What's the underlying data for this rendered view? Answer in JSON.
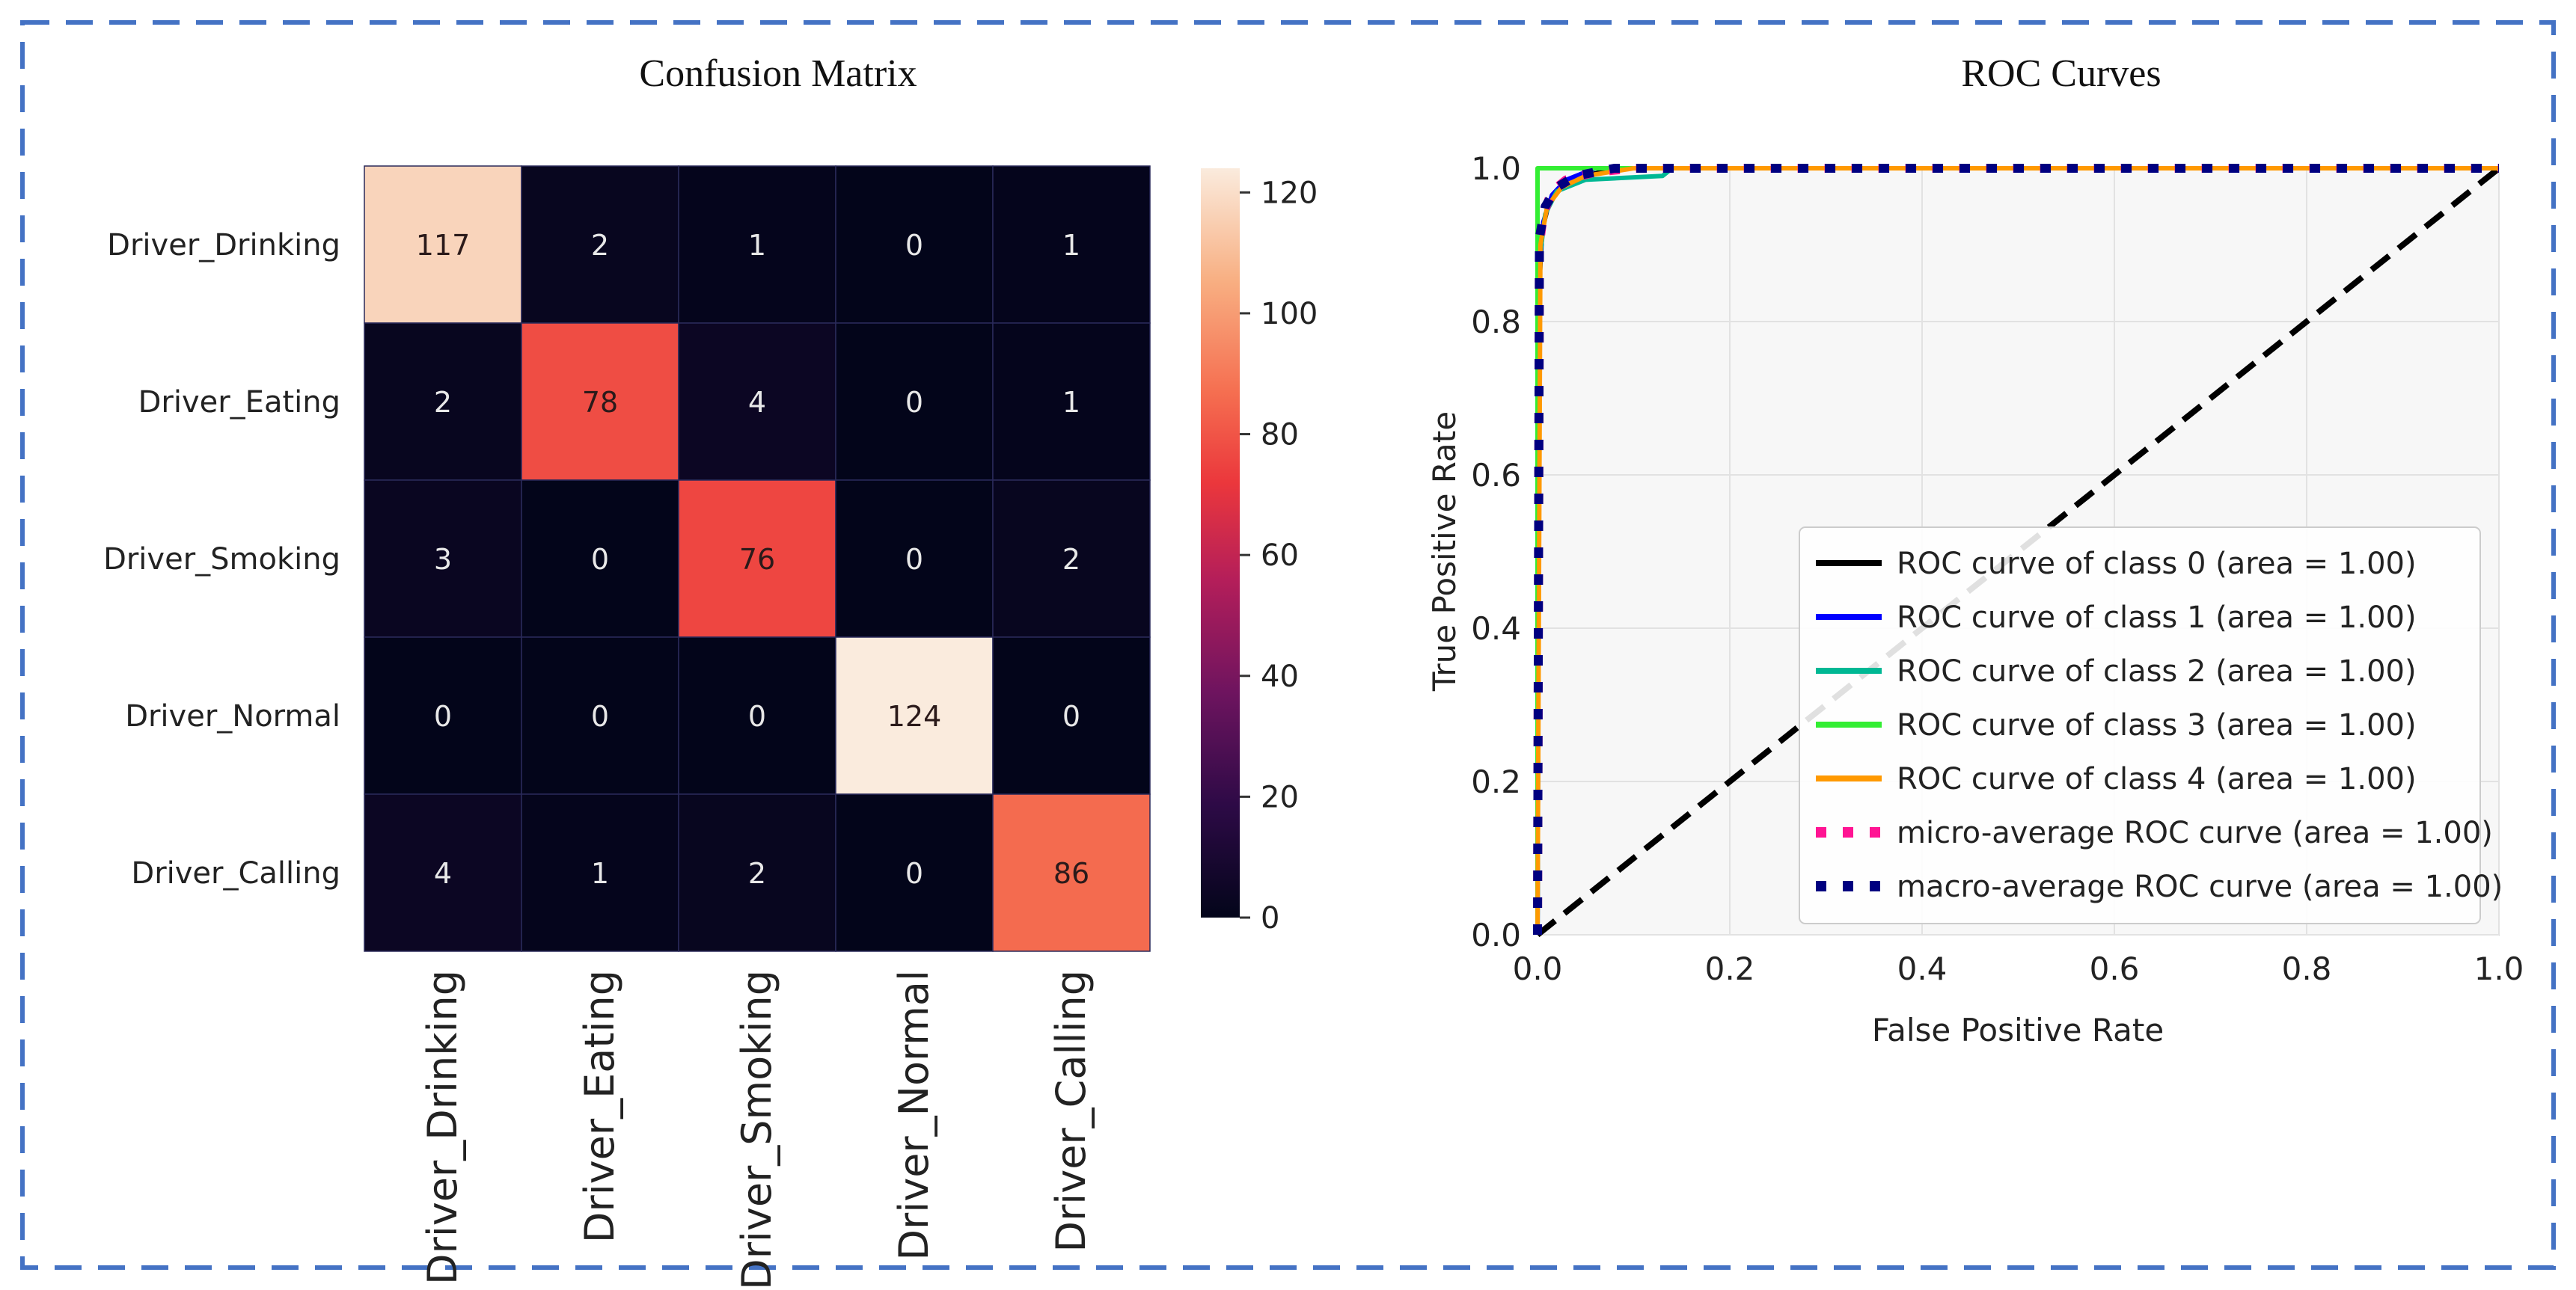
{
  "chart_data": [
    {
      "type": "heatmap",
      "title": "Confusion Matrix",
      "row_labels": [
        "Driver_Drinking",
        "Driver_Eating",
        "Driver_Smoking",
        "Driver_Normal",
        "Driver_Calling"
      ],
      "col_labels": [
        "Driver_Drinking",
        "Driver_Eating",
        "Driver_Smoking",
        "Driver_Normal",
        "Driver_Calling"
      ],
      "matrix": [
        [
          117,
          2,
          1,
          0,
          1
        ],
        [
          2,
          78,
          4,
          0,
          1
        ],
        [
          3,
          0,
          76,
          0,
          2
        ],
        [
          0,
          0,
          0,
          124,
          0
        ],
        [
          4,
          1,
          2,
          0,
          86
        ]
      ],
      "colorbar": {
        "min": 0,
        "max": 124,
        "ticks": [
          "0",
          "20",
          "40",
          "60",
          "80",
          "100",
          "120"
        ]
      }
    },
    {
      "type": "line",
      "title": "ROC Curves",
      "xlabel": "False Positive Rate",
      "ylabel": "True Positive Rate",
      "xlim": [
        0,
        1
      ],
      "ylim": [
        0,
        1
      ],
      "xticks": [
        "0.0",
        "0.2",
        "0.4",
        "0.6",
        "0.8",
        "1.0"
      ],
      "yticks": [
        "0.0",
        "0.2",
        "0.4",
        "0.6",
        "0.8",
        "1.0"
      ],
      "legend_position": "lower-right",
      "series": [
        {
          "name": "ROC curve of class 0 (area = 1.00)",
          "color": "#000000",
          "style": "solid",
          "points": [
            [
              0,
              0
            ],
            [
              0.002,
              0.85
            ],
            [
              0.005,
              0.92
            ],
            [
              0.012,
              0.955
            ],
            [
              0.025,
              0.975
            ],
            [
              0.05,
              0.99
            ],
            [
              0.08,
              1
            ],
            [
              1,
              1
            ]
          ]
        },
        {
          "name": "ROC curve of class 1 (area = 1.00)",
          "color": "#0000ff",
          "style": "solid",
          "points": [
            [
              0,
              0
            ],
            [
              0.002,
              0.87
            ],
            [
              0.006,
              0.93
            ],
            [
              0.015,
              0.965
            ],
            [
              0.03,
              0.985
            ],
            [
              0.06,
              1
            ],
            [
              1,
              1
            ]
          ]
        },
        {
          "name": "ROC curve of class 2 (area = 1.00)",
          "color": "#00b894",
          "style": "solid",
          "points": [
            [
              0,
              0
            ],
            [
              0.002,
              0.88
            ],
            [
              0.008,
              0.94
            ],
            [
              0.02,
              0.97
            ],
            [
              0.05,
              0.985
            ],
            [
              0.13,
              0.99
            ],
            [
              0.14,
              1
            ],
            [
              1,
              1
            ]
          ]
        },
        {
          "name": "ROC curve of class 3 (area = 1.00)",
          "color": "#33ee33",
          "style": "solid",
          "points": [
            [
              0,
              0
            ],
            [
              0,
              1
            ],
            [
              1,
              1
            ]
          ]
        },
        {
          "name": "ROC curve of class 4 (area = 1.00)",
          "color": "#ff9900",
          "style": "solid",
          "points": [
            [
              0,
              0
            ],
            [
              0.003,
              0.9
            ],
            [
              0.01,
              0.95
            ],
            [
              0.025,
              0.975
            ],
            [
              0.05,
              0.99
            ],
            [
              0.1,
              1
            ],
            [
              1,
              1
            ]
          ]
        },
        {
          "name": "micro-average ROC curve (area = 1.00)",
          "color": "#ff1493",
          "style": "dotted",
          "points": [
            [
              0,
              0
            ],
            [
              0.002,
              0.9
            ],
            [
              0.006,
              0.94
            ],
            [
              0.015,
              0.97
            ],
            [
              0.03,
              0.985
            ],
            [
              0.06,
              0.995
            ],
            [
              0.1,
              1
            ],
            [
              1,
              1
            ]
          ]
        },
        {
          "name": "macro-average ROC curve (area = 1.00)",
          "color": "#000080",
          "style": "dotted",
          "points": [
            [
              0,
              0
            ],
            [
              0.002,
              0.91
            ],
            [
              0.008,
              0.95
            ],
            [
              0.02,
              0.975
            ],
            [
              0.04,
              0.99
            ],
            [
              0.08,
              1
            ],
            [
              1,
              1
            ]
          ]
        }
      ],
      "reference_line": {
        "points": [
          [
            0,
            0
          ],
          [
            1,
            1
          ]
        ],
        "color": "#000000",
        "style": "dashed"
      }
    }
  ]
}
